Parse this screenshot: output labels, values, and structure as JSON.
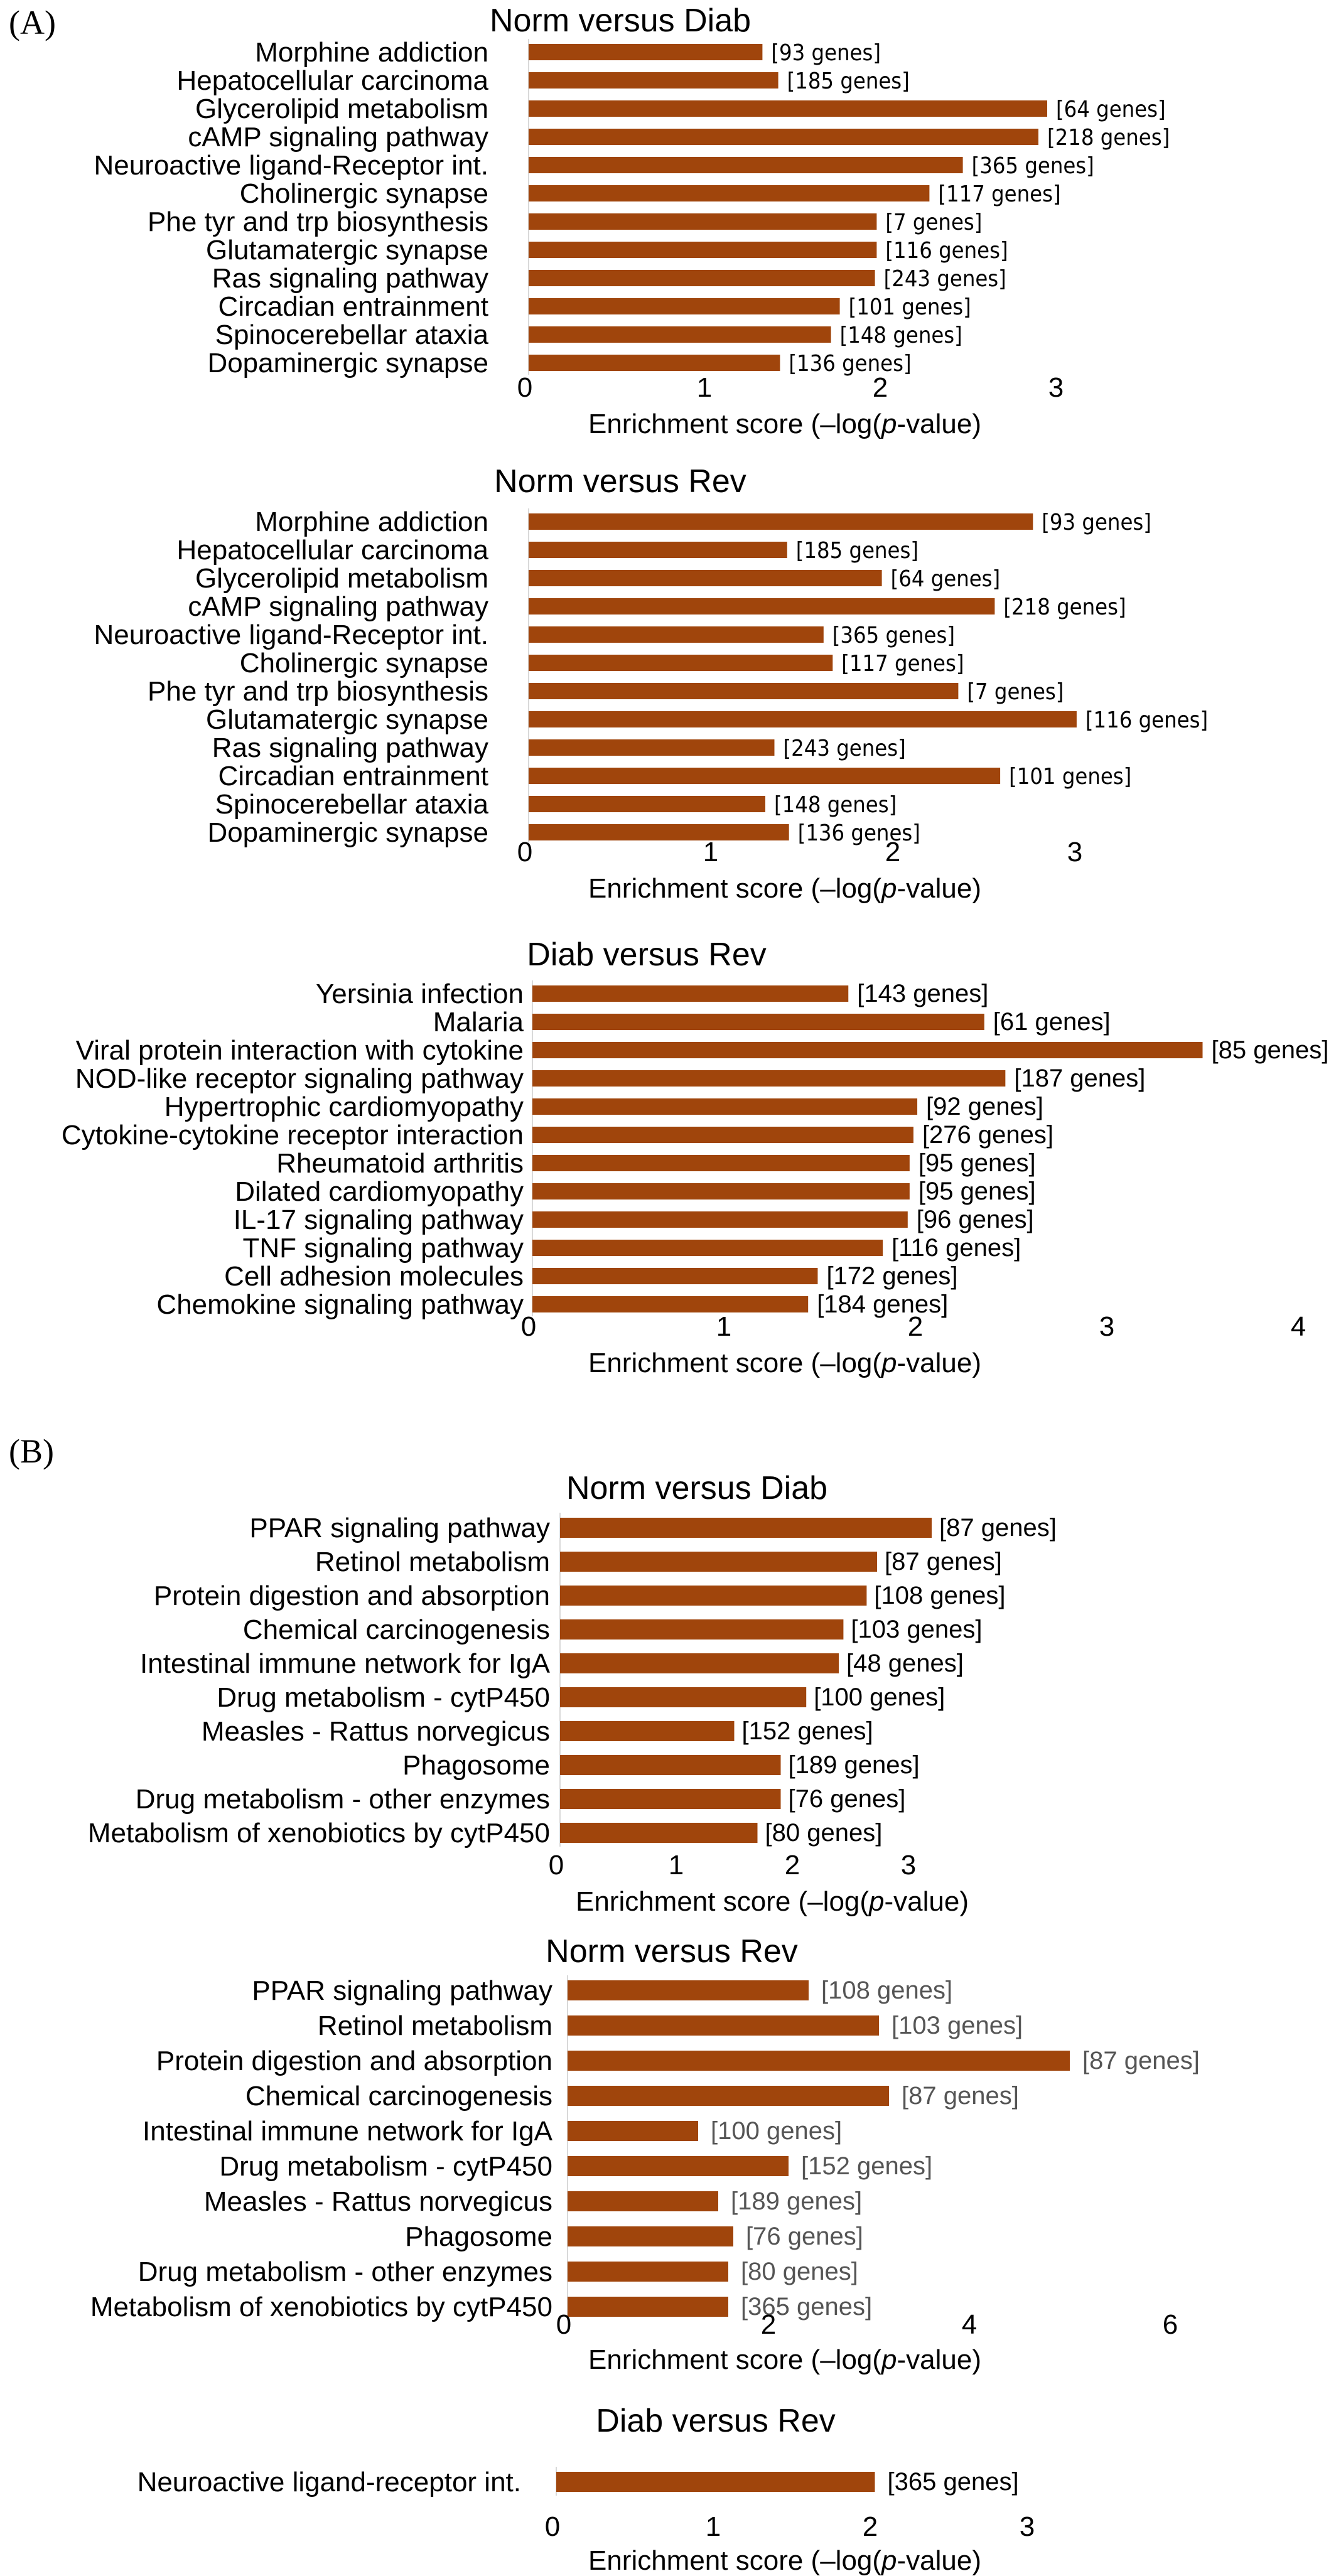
{
  "panels": [
    {
      "letter": "(A)"
    },
    {
      "letter": "(B)"
    }
  ],
  "chart_data": [
    {
      "type": "bar",
      "orientation": "horizontal",
      "panel": "(A)",
      "title": "Norm versus Diab",
      "xlabel": "Enrichment score (–log(p-value)",
      "xlim": [
        0,
        3
      ],
      "xticks": [
        0,
        1,
        2,
        3
      ],
      "categories": [
        "Morphine addiction",
        "Hepatocellular carcinoma",
        "Glycerolipid metabolism",
        "cAMP signaling pathway",
        "Neuroactive ligand-Receptor int.",
        "Cholinergic synapse",
        "Phe tyr and trp biosynthesis",
        "Glutamatergic synapse",
        "Ras signaling pathway",
        "Circadian entrainment",
        "Spinocerebellar ataxia",
        "Dopaminergic synapse"
      ],
      "values": [
        1.33,
        1.42,
        2.95,
        2.9,
        2.47,
        2.28,
        1.98,
        1.98,
        1.97,
        1.77,
        1.72,
        1.43
      ],
      "labels": [
        "[93 genes]",
        "[185 genes]",
        "[64 genes]",
        "[218 genes]",
        "[365 genes]",
        "[117 genes]",
        "[7 genes]",
        "[116 genes]",
        "[243 genes]",
        "[101 genes]",
        "[148 genes]",
        "[136 genes]"
      ],
      "bar_color": "#a0450c"
    },
    {
      "type": "bar",
      "orientation": "horizontal",
      "panel": "(A)",
      "title": "Norm versus Rev",
      "xlabel": "Enrichment score (–log(p-value)",
      "xlim": [
        0,
        3
      ],
      "xticks": [
        0,
        1,
        2,
        3
      ],
      "categories": [
        "Morphine addiction",
        "Hepatocellular carcinoma",
        "Glycerolipid metabolism",
        "cAMP signaling pathway",
        "Neuroactive ligand-Receptor int.",
        "Cholinergic synapse",
        "Phe tyr and trp biosynthesis",
        "Glutamatergic synapse",
        "Ras signaling pathway",
        "Circadian entrainment",
        "Spinocerebellar ataxia",
        "Dopaminergic synapse"
      ],
      "values": [
        2.77,
        1.42,
        1.94,
        2.56,
        1.62,
        1.67,
        2.36,
        3.01,
        1.35,
        2.59,
        1.3,
        1.43
      ],
      "labels": [
        "[93 genes]",
        "[185 genes]",
        "[64 genes]",
        "[218 genes]",
        "[365 genes]",
        "[117 genes]",
        "[7 genes]",
        "[116 genes]",
        "[243 genes]",
        "[101 genes]",
        "[148 genes]",
        "[136 genes]"
      ],
      "bar_color": "#a0450c"
    },
    {
      "type": "bar",
      "orientation": "horizontal",
      "panel": "(A)",
      "title": "Diab versus Rev",
      "xlabel": "Enrichment score (–log(p-value)",
      "xlim": [
        0,
        4
      ],
      "xticks": [
        0,
        1,
        2,
        3,
        4
      ],
      "categories": [
        "Yersinia infection",
        "Malaria",
        "Viral protein interaction with cytokine",
        "NOD-like receptor signaling pathway",
        "Hypertrophic cardiomyopathy",
        "Cytokine-cytokine receptor interaction",
        "Rheumatoid arthritis",
        "Dilated cardiomyopathy",
        "IL-17 signaling pathway",
        "TNF signaling pathway",
        "Cell adhesion molecules",
        "Chemokine signaling pathway"
      ],
      "values": [
        1.65,
        2.36,
        3.5,
        2.47,
        2.01,
        1.99,
        1.97,
        1.97,
        1.96,
        1.83,
        1.49,
        1.44
      ],
      "labels": [
        "[143 genes]",
        "[61 genes]",
        "[85 genes]",
        "[187 genes]",
        "[92 genes]",
        "[276 genes]",
        "[95 genes]",
        "[95 genes]",
        "[96 genes]",
        "[116 genes]",
        "[172 genes]",
        "[184 genes]"
      ],
      "bar_color": "#a0450c"
    },
    {
      "type": "bar",
      "orientation": "horizontal",
      "panel": "(B)",
      "title": "Norm versus Diab",
      "xlabel": "Enrichment score (–log(p-value)",
      "xlim": [
        0,
        3
      ],
      "xticks": [
        0,
        1,
        2,
        3
      ],
      "categories": [
        "PPAR signaling pathway",
        "Retinol metabolism",
        "Protein digestion and absorption",
        "Chemical carcinogenesis",
        "Intestinal immune network for IgA",
        "Drug metabolism - cytP450",
        "Measles - Rattus norvegicus",
        "Phagosome",
        "Drug metabolism - other enzymes",
        "Metabolism of xenobiotics by cytP450"
      ],
      "values": [
        3.2,
        2.73,
        2.64,
        2.44,
        2.4,
        2.12,
        1.5,
        1.9,
        1.9,
        1.7
      ],
      "labels": [
        "[87 genes]",
        "[87 genes]",
        "[108 genes]",
        "[103 genes]",
        "[48 genes]",
        "[100 genes]",
        "[152 genes]",
        "[189 genes]",
        "[76 genes]",
        "[80 genes]"
      ],
      "bar_color": "#a0450c"
    },
    {
      "type": "bar",
      "orientation": "horizontal",
      "panel": "(B)",
      "title": "Norm versus Rev",
      "xlabel": "Enrichment score (–log(p-value)",
      "xlim": [
        0,
        6
      ],
      "xticks": [
        0,
        2,
        4,
        6
      ],
      "categories": [
        "PPAR signaling pathway",
        "Retinol metabolism",
        "Protein digestion and absorption",
        "Chemical carcinogenesis",
        "Intestinal immune network for IgA",
        "Drug metabolism - cytP450",
        "Measles - Rattus norvegicus",
        "Phagosome",
        "Drug metabolism - other enzymes",
        "Metabolism of xenobiotics by cytP450"
      ],
      "values": [
        2.4,
        3.1,
        5.0,
        3.2,
        1.3,
        2.2,
        1.5,
        1.65,
        1.6,
        1.6
      ],
      "labels": [
        "[108 genes]",
        "[103 genes]",
        "[87 genes]",
        "[87 genes]",
        "[100 genes]",
        "[152 genes]",
        "[189 genes]",
        "[76 genes]",
        "[80 genes]",
        "[365 genes]"
      ],
      "bar_color": "#a0450c",
      "label_color": "#555555"
    },
    {
      "type": "bar",
      "orientation": "horizontal",
      "panel": "(B)",
      "title": "Diab versus Rev",
      "xlabel": "Enrichment score (–log(p-value)",
      "xlim": [
        0,
        3
      ],
      "xticks": [
        0,
        1,
        2,
        3
      ],
      "categories": [
        "Neuroactive ligand-receptor int."
      ],
      "values": [
        2.03
      ],
      "labels": [
        "[365 genes]"
      ],
      "bar_color": "#a0450c"
    }
  ]
}
